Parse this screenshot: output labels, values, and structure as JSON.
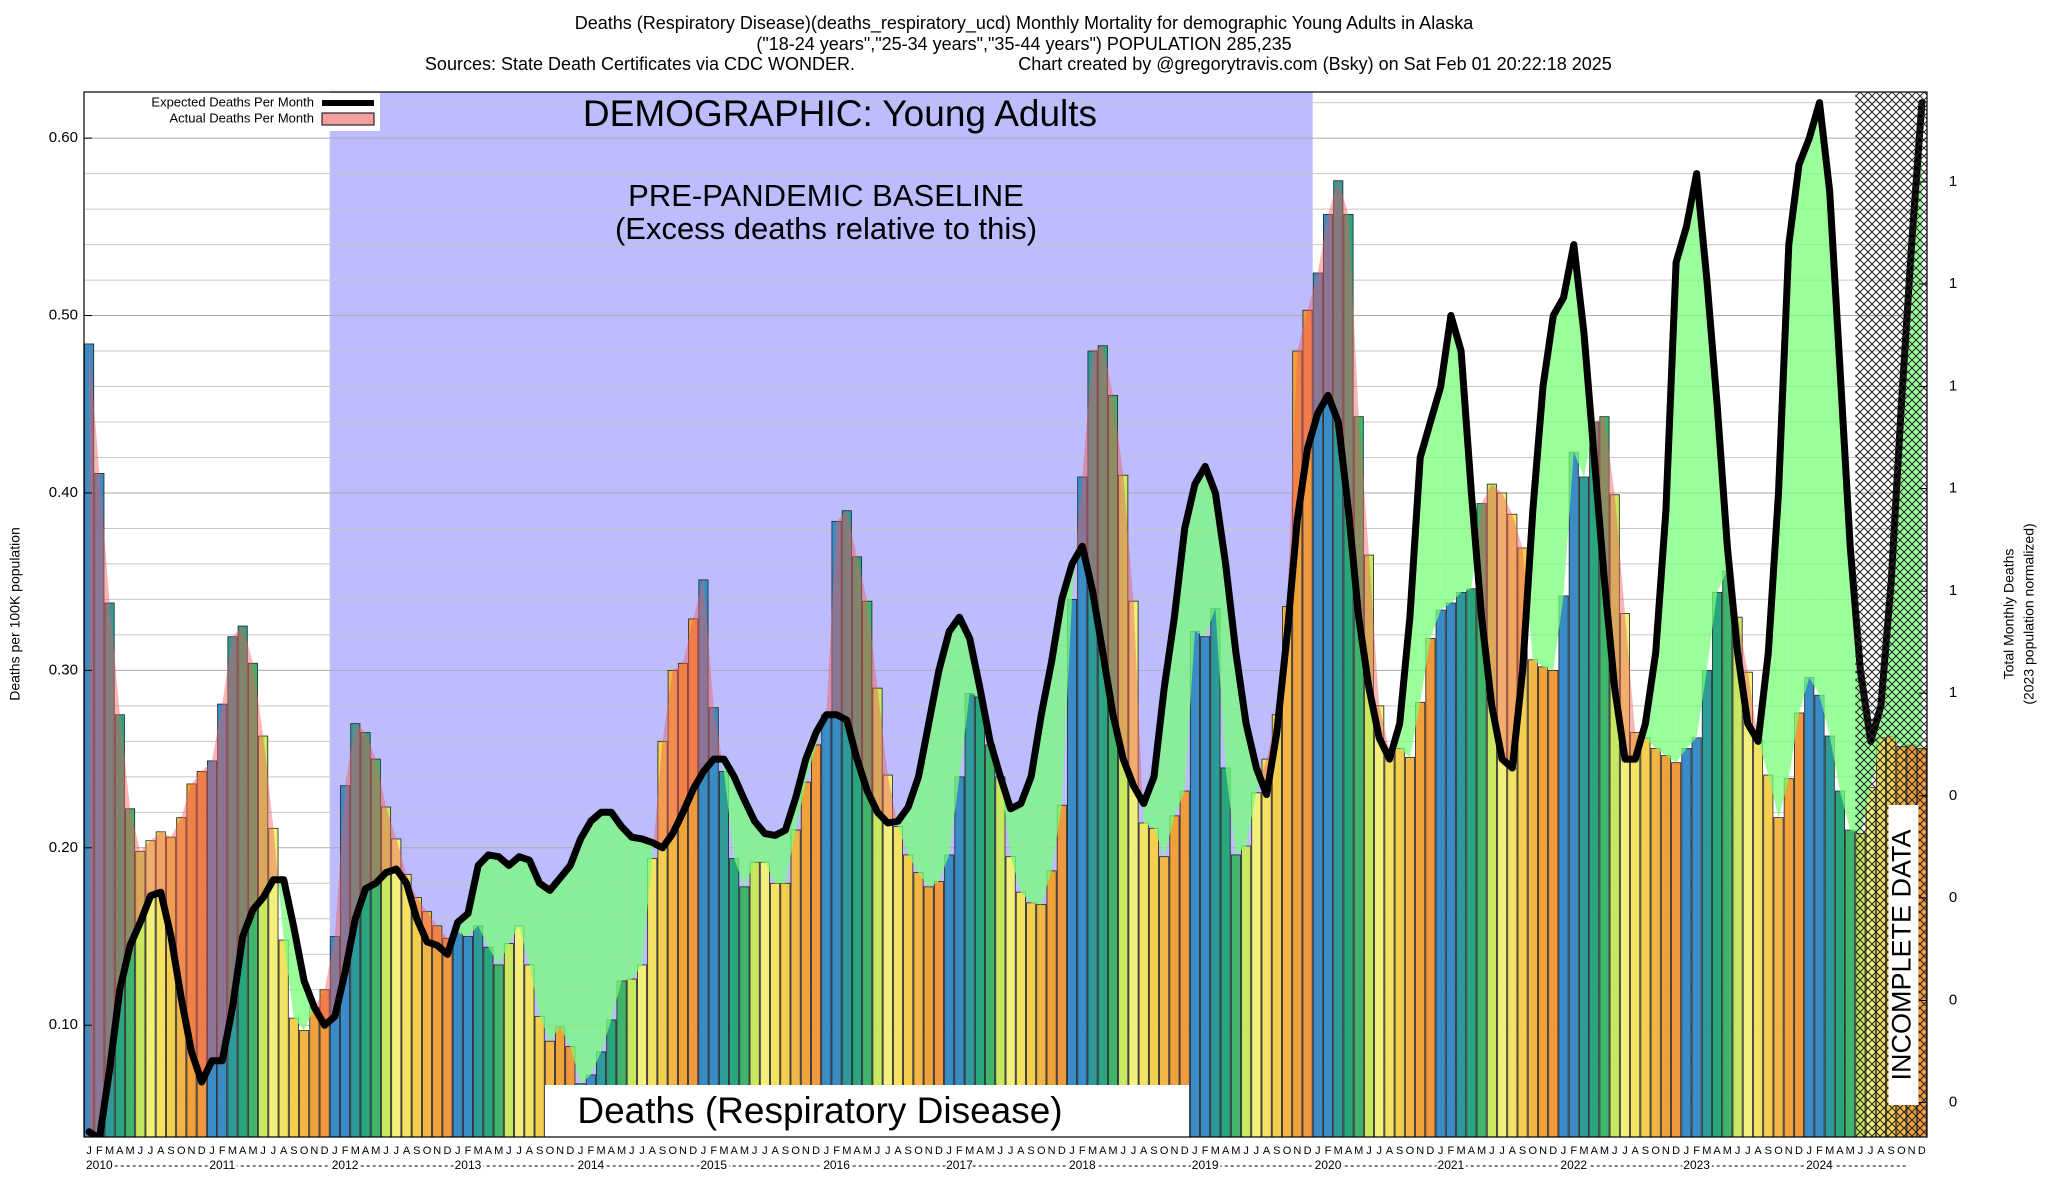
{
  "chart_data": {
    "type": "bar",
    "title": "Deaths (Respiratory Disease)(deaths_respiratory_ucd) Monthly Mortality for demographic Young Adults in Alaska",
    "subtitle": "(\"18-24 years\",\"25-34 years\",\"35-44 years\") POPULATION 285,235",
    "source": "Sources: State Death Certificates via CDC WONDER.",
    "credit": "Chart created by @gregorytravis.com (Bsky) on Sat Feb 01 20:22:18 2025",
    "demographic_label": "DEMOGRAPHIC: Young Adults",
    "baseline": {
      "title": "PRE-PANDEMIC BASELINE",
      "subtitle": "(Excess deaths relative to this)",
      "from": "2012",
      "to": "2019"
    },
    "footer_label": "Deaths (Respiratory Disease)",
    "incomplete_label": "INCOMPLETE DATA",
    "y_label": "Deaths per 100K population",
    "y2_label": [
      "Total Monthly Deaths",
      "(2023 population normalized)"
    ],
    "categories": [
      "J",
      "F",
      "M",
      "A",
      "M",
      "J",
      "J",
      "A",
      "S",
      "O",
      "N",
      "D",
      "J",
      "F",
      "M",
      "A",
      "M",
      "J",
      "J",
      "A",
      "S",
      "O",
      "N",
      "D",
      "J",
      "F",
      "M",
      "A",
      "M",
      "J",
      "J",
      "A",
      "S",
      "O",
      "N",
      "D",
      "J",
      "F",
      "M",
      "A",
      "M",
      "J",
      "J",
      "A",
      "S",
      "O",
      "N",
      "D",
      "J",
      "F",
      "M",
      "A",
      "M",
      "J",
      "J",
      "A",
      "S",
      "O",
      "N",
      "D",
      "J",
      "F",
      "M",
      "A",
      "M",
      "J",
      "J",
      "A",
      "S",
      "O",
      "N",
      "D",
      "J",
      "F",
      "M",
      "A",
      "M",
      "J",
      "J",
      "A",
      "S",
      "O",
      "N",
      "D",
      "J",
      "F",
      "M",
      "A",
      "M",
      "J",
      "J",
      "A",
      "S",
      "O",
      "N",
      "D",
      "J",
      "F",
      "M",
      "A",
      "M",
      "J",
      "J",
      "A",
      "S",
      "O",
      "N",
      "D",
      "J",
      "F",
      "M",
      "A",
      "M",
      "J",
      "J",
      "A",
      "S",
      "O",
      "N",
      "D",
      "J",
      "F",
      "M",
      "A",
      "M",
      "J",
      "J",
      "A",
      "S",
      "O",
      "N",
      "D",
      "J",
      "F",
      "M",
      "A",
      "M",
      "J",
      "J",
      "A",
      "S",
      "O",
      "N",
      "D",
      "J",
      "F",
      "M",
      "A",
      "M",
      "J",
      "J",
      "A",
      "S",
      "O",
      "N",
      "D",
      "J",
      "F",
      "M",
      "A",
      "M",
      "J",
      "J",
      "A",
      "S",
      "O",
      "N",
      "D",
      "J",
      "F",
      "M",
      "A",
      "M",
      "J",
      "J",
      "A",
      "S",
      "O",
      "N",
      "D"
    ],
    "years": [
      "2010",
      "2011",
      "2012",
      "2013",
      "2014",
      "2015",
      "2016",
      "2017",
      "2018",
      "2019",
      "2020",
      "2021",
      "2022",
      "2023",
      "2024"
    ],
    "month_colors": [
      "#3a8cc6",
      "#3a8cc6",
      "#2e9a9a",
      "#2aa67e",
      "#3fb46a",
      "#c8e860",
      "#f2f07a",
      "#f4e262",
      "#f4cf4e",
      "#f3b545",
      "#f0a23a",
      "#f0983e"
    ],
    "series": [
      {
        "name": "Expected Deaths Per Month",
        "color": "#000000",
        "values": [
          0.04,
          0.036,
          0.075,
          0.12,
          0.145,
          0.158,
          0.173,
          0.175,
          0.15,
          0.115,
          0.085,
          0.068,
          0.08,
          0.08,
          0.11,
          0.15,
          0.165,
          0.172,
          0.182,
          0.182,
          0.155,
          0.125,
          0.11,
          0.1,
          0.105,
          0.13,
          0.16,
          0.177,
          0.18,
          0.186,
          0.188,
          0.18,
          0.16,
          0.147,
          0.145,
          0.14,
          0.158,
          0.163,
          0.19,
          0.196,
          0.195,
          0.19,
          0.195,
          0.193,
          0.18,
          0.176,
          0.183,
          0.19,
          0.205,
          0.215,
          0.22,
          0.22,
          0.212,
          0.206,
          0.205,
          0.203,
          0.2,
          0.208,
          0.22,
          0.233,
          0.243,
          0.25,
          0.25,
          0.24,
          0.227,
          0.215,
          0.208,
          0.207,
          0.21,
          0.228,
          0.25,
          0.265,
          0.275,
          0.275,
          0.272,
          0.25,
          0.232,
          0.22,
          0.214,
          0.215,
          0.223,
          0.24,
          0.27,
          0.3,
          0.322,
          0.33,
          0.318,
          0.29,
          0.26,
          0.24,
          0.222,
          0.225,
          0.24,
          0.275,
          0.305,
          0.34,
          0.36,
          0.37,
          0.345,
          0.31,
          0.275,
          0.25,
          0.235,
          0.225,
          0.24,
          0.29,
          0.33,
          0.38,
          0.405,
          0.415,
          0.4,
          0.36,
          0.31,
          0.27,
          0.245,
          0.23,
          0.265,
          0.32,
          0.385,
          0.425,
          0.445,
          0.455,
          0.44,
          0.39,
          0.33,
          0.29,
          0.262,
          0.25,
          0.27,
          0.33,
          0.42,
          0.44,
          0.46,
          0.5,
          0.48,
          0.4,
          0.33,
          0.28,
          0.25,
          0.245,
          0.3,
          0.39,
          0.46,
          0.5,
          0.51,
          0.54,
          0.49,
          0.42,
          0.35,
          0.29,
          0.25,
          0.25,
          0.27,
          0.31,
          0.39,
          0.53,
          0.55,
          0.58,
          0.52,
          0.45,
          0.37,
          0.31,
          0.27,
          0.26,
          0.31,
          0.4,
          0.54,
          0.585,
          0.6,
          0.62,
          0.57,
          0.47,
          0.37,
          0.3,
          0.26,
          0.28,
          0.35,
          0.45,
          0.54,
          0.62
        ]
      },
      {
        "name": "Actual Deaths Per Month",
        "color": "#f4a0a0",
        "values": [
          0.484,
          0.411,
          0.338,
          0.275,
          0.222,
          0.198,
          0.204,
          0.209,
          0.206,
          0.217,
          0.236,
          0.243,
          0.249,
          0.281,
          0.319,
          0.325,
          0.304,
          0.263,
          0.211,
          0.148,
          0.104,
          0.097,
          0.11,
          0.12,
          0.15,
          0.235,
          0.27,
          0.265,
          0.25,
          0.223,
          0.205,
          0.185,
          0.172,
          0.164,
          0.156,
          0.149,
          0.152,
          0.15,
          0.156,
          0.144,
          0.134,
          0.146,
          0.156,
          0.134,
          0.105,
          0.091,
          0.099,
          0.088,
          0.067,
          0.072,
          0.085,
          0.103,
          0.125,
          0.126,
          0.134,
          0.194,
          0.26,
          0.3,
          0.304,
          0.329,
          0.351,
          0.279,
          0.243,
          0.194,
          0.178,
          0.192,
          0.192,
          0.18,
          0.18,
          0.21,
          0.237,
          0.258,
          0.275,
          0.384,
          0.39,
          0.364,
          0.339,
          0.29,
          0.241,
          0.212,
          0.196,
          0.186,
          0.178,
          0.181,
          0.196,
          0.24,
          0.287,
          0.285,
          0.258,
          0.24,
          0.195,
          0.175,
          0.169,
          0.168,
          0.187,
          0.224,
          0.34,
          0.409,
          0.48,
          0.483,
          0.455,
          0.41,
          0.339,
          0.214,
          0.211,
          0.195,
          0.218,
          0.232,
          0.322,
          0.319,
          0.335,
          0.245,
          0.196,
          0.201,
          0.231,
          0.25,
          0.275,
          0.336,
          0.48,
          0.503,
          0.524,
          0.557,
          0.576,
          0.557,
          0.443,
          0.365,
          0.28,
          0.255,
          0.256,
          0.251,
          0.282,
          0.318,
          0.334,
          0.338,
          0.344,
          0.346,
          0.394,
          0.405,
          0.4,
          0.388,
          0.369,
          0.306,
          0.302,
          0.3,
          0.342,
          0.423,
          0.409,
          0.44,
          0.443,
          0.399,
          0.332,
          0.265,
          0.262,
          0.256,
          0.252,
          0.248,
          0.256,
          0.262,
          0.3,
          0.344,
          0.356,
          0.33,
          0.299,
          0.261,
          0.241,
          0.217,
          0.239,
          0.276,
          0.296,
          0.286,
          0.263,
          0.232,
          0.21,
          0.208,
          0.234,
          0.262,
          0.263,
          0.257,
          0.258,
          0.256
        ]
      }
    ],
    "ylim": [
      0.037,
      0.626
    ],
    "yticks": [
      {
        "value": 0.1,
        "label": "0.10"
      },
      {
        "value": 0.2,
        "label": "0.20"
      },
      {
        "value": 0.3,
        "label": "0.30"
      },
      {
        "value": 0.4,
        "label": "0.40"
      },
      {
        "value": 0.5,
        "label": "0.50"
      },
      {
        "value": 0.6,
        "label": "0.60"
      }
    ],
    "yminor": [
      0.04,
      0.06,
      0.08,
      0.12,
      0.14,
      0.16,
      0.18,
      0.22,
      0.24,
      0.26,
      0.28,
      0.32,
      0.34,
      0.36,
      0.38,
      0.42,
      0.44,
      0.46,
      0.48,
      0.52,
      0.54,
      0.56,
      0.58,
      0.62
    ],
    "y2lim": [
      0.1055,
      1.7856
    ],
    "y2ticks": [
      {
        "value": 0.161,
        "label": "0"
      },
      {
        "value": 0.325,
        "label": "0"
      },
      {
        "value": 0.49,
        "label": "0"
      },
      {
        "value": 0.654,
        "label": "0"
      },
      {
        "value": 0.819,
        "label": "1"
      },
      {
        "value": 0.983,
        "label": "1"
      },
      {
        "value": 1.148,
        "label": "1"
      },
      {
        "value": 1.312,
        "label": "1"
      },
      {
        "value": 1.477,
        "label": "1"
      },
      {
        "value": 1.641,
        "label": "1"
      }
    ],
    "grid": true,
    "legend": "top-left"
  }
}
